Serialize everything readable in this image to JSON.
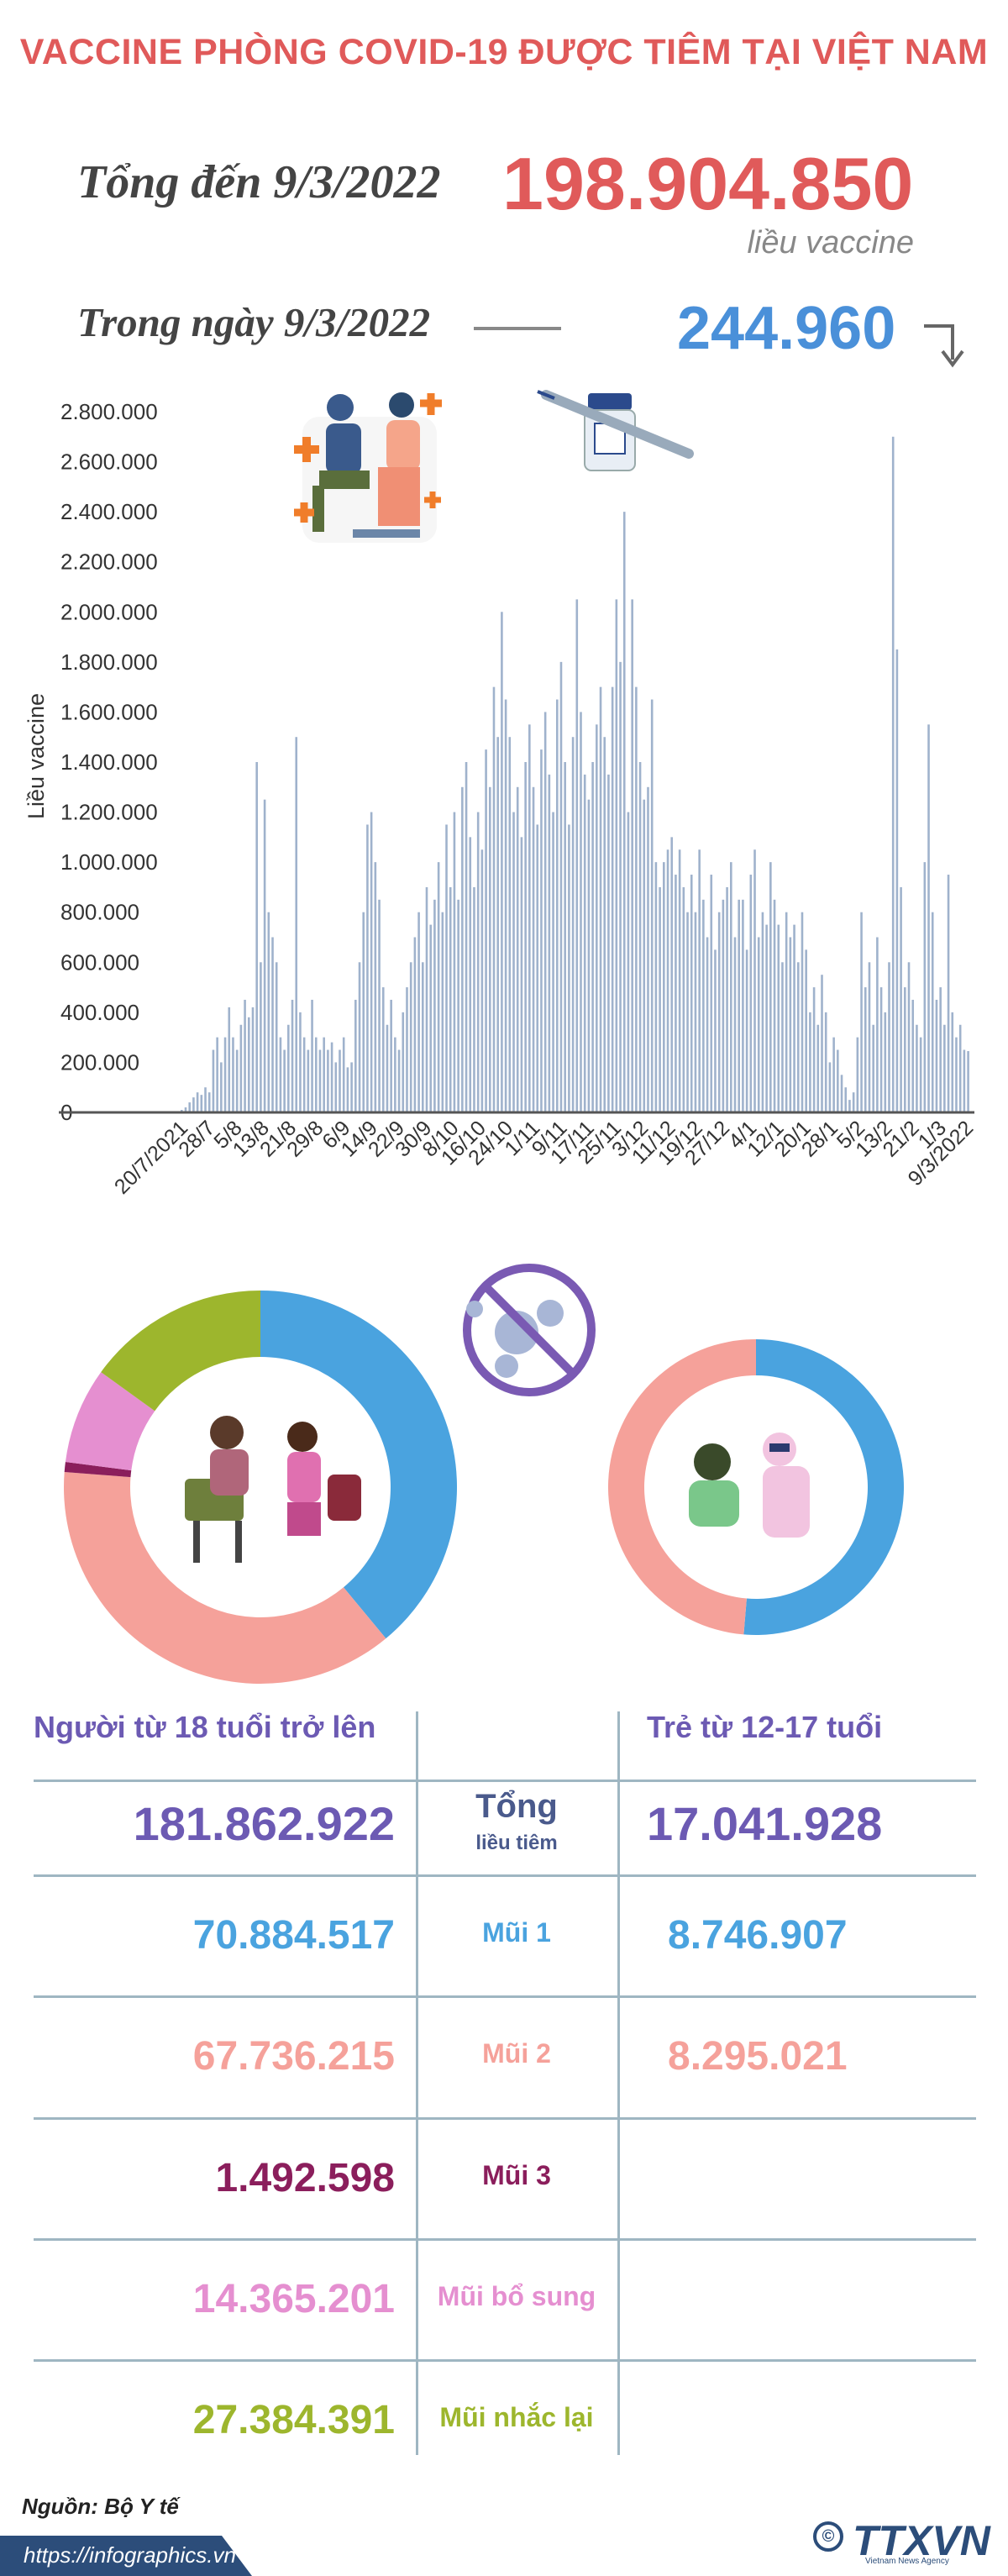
{
  "title": "VACCINE PHÒNG COVID-19 ĐƯỢC TIÊM TẠI VIỆT NAM",
  "summary": {
    "total_label": "Tổng đến 9/3/2022",
    "total_value": "198.904.850",
    "total_unit": "liều vaccine",
    "daily_label": "Trong ngày 9/3/2022",
    "daily_value": "244.960"
  },
  "chart_data": {
    "type": "bar",
    "ylabel": "Liều vaccine",
    "ylim": [
      0,
      2800000
    ],
    "yticks": [
      "0",
      "200.000",
      "400.000",
      "600.000",
      "800.000",
      "1.000.000",
      "1.200.000",
      "1.400.000",
      "1.600.000",
      "1.800.000",
      "2.000.000",
      "2.200.000",
      "2.400.000",
      "2.600.000",
      "2.800.000"
    ],
    "xticks": [
      "20/7/2021",
      "28/7",
      "5/8",
      "13/8",
      "21/8",
      "29/8",
      "6/9",
      "14/9",
      "22/9",
      "30/9",
      "8/10",
      "16/10",
      "24/10",
      "1/11",
      "9/11",
      "17/11",
      "25/11",
      "3/12",
      "11/12",
      "19/12",
      "27/12",
      "4/1",
      "12/1",
      "20/1",
      "28/1",
      "5/2",
      "13/2",
      "21/2",
      "1/3",
      "9/3/2022"
    ],
    "color": "#9fb2cc",
    "values": [
      10000,
      20000,
      40000,
      60000,
      80000,
      70000,
      100000,
      80000,
      250000,
      300000,
      200000,
      300000,
      420000,
      300000,
      250000,
      350000,
      450000,
      380000,
      420000,
      1400000,
      600000,
      1250000,
      800000,
      700000,
      600000,
      300000,
      250000,
      350000,
      450000,
      1500000,
      400000,
      300000,
      250000,
      450000,
      300000,
      250000,
      300000,
      250000,
      280000,
      200000,
      250000,
      300000,
      180000,
      200000,
      450000,
      600000,
      800000,
      1150000,
      1200000,
      1000000,
      850000,
      500000,
      350000,
      450000,
      300000,
      250000,
      400000,
      500000,
      600000,
      700000,
      800000,
      600000,
      900000,
      750000,
      850000,
      1000000,
      800000,
      1150000,
      900000,
      1200000,
      850000,
      1300000,
      1400000,
      1100000,
      900000,
      1200000,
      1050000,
      1450000,
      1300000,
      1700000,
      1500000,
      2000000,
      1650000,
      1500000,
      1200000,
      1300000,
      1100000,
      1400000,
      1550000,
      1300000,
      1150000,
      1450000,
      1600000,
      1350000,
      1200000,
      1650000,
      1800000,
      1400000,
      1150000,
      1500000,
      2050000,
      1600000,
      1350000,
      1250000,
      1400000,
      1550000,
      1700000,
      1500000,
      1350000,
      1700000,
      2050000,
      1800000,
      2400000,
      1200000,
      2050000,
      1700000,
      1400000,
      1250000,
      1300000,
      1650000,
      1000000,
      900000,
      1000000,
      1050000,
      1100000,
      950000,
      1050000,
      900000,
      800000,
      950000,
      800000,
      1050000,
      850000,
      700000,
      950000,
      650000,
      800000,
      850000,
      900000,
      1000000,
      700000,
      850000,
      850000,
      650000,
      950000,
      1050000,
      700000,
      800000,
      750000,
      1000000,
      850000,
      750000,
      600000,
      800000,
      700000,
      750000,
      600000,
      800000,
      650000,
      400000,
      500000,
      350000,
      550000,
      400000,
      200000,
      300000,
      250000,
      150000,
      100000,
      50000,
      80000,
      300000,
      800000,
      500000,
      600000,
      350000,
      700000,
      500000,
      400000,
      600000,
      2700000,
      1850000,
      900000,
      500000,
      600000,
      450000,
      350000,
      300000,
      1000000,
      1550000,
      800000,
      450000,
      500000,
      350000,
      950000,
      400000,
      300000,
      350000,
      250000,
      244960
    ]
  },
  "donut_adult": {
    "segments": [
      {
        "value": 70884517,
        "color": "#4aa3df"
      },
      {
        "value": 67736215,
        "color": "#f5a19a"
      },
      {
        "value": 1492598,
        "color": "#8b1e5c"
      },
      {
        "value": 14365201,
        "color": "#e58fd0"
      },
      {
        "value": 27384391,
        "color": "#9db62d"
      }
    ]
  },
  "donut_child": {
    "segments": [
      {
        "value": 8746907,
        "color": "#4aa3df"
      },
      {
        "value": 8295021,
        "color": "#f5a19a"
      }
    ]
  },
  "table": {
    "head_adult": "Người từ 18 tuổi trở lên",
    "head_child": "Trẻ từ 12-17 tuổi",
    "total_label": "Tổng",
    "total_sub": "liều tiêm",
    "total_adult": "181.862.922",
    "total_child": "17.041.928",
    "rows": [
      {
        "label": "Mũi 1",
        "adult": "70.884.517",
        "child": "8.746.907",
        "color": "#4aa3df"
      },
      {
        "label": "Mũi 2",
        "adult": "67.736.215",
        "child": "8.295.021",
        "color": "#f5a19a"
      },
      {
        "label": "Mũi 3",
        "adult": "1.492.598",
        "child": "",
        "color": "#8b1e5c"
      },
      {
        "label": "Mũi bổ sung",
        "adult": "14.365.201",
        "child": "",
        "color": "#e58fd0"
      },
      {
        "label": "Mũi nhắc lại",
        "adult": "27.384.391",
        "child": "",
        "color": "#9db62d"
      }
    ],
    "value_color": "#6c5ab3"
  },
  "footer": {
    "source": "Nguồn: Bộ Y tế",
    "url": "https://infographics.vn",
    "logo": "TTXVN",
    "logo_sub": "Vietnam News Agency",
    "copyright": "©"
  }
}
